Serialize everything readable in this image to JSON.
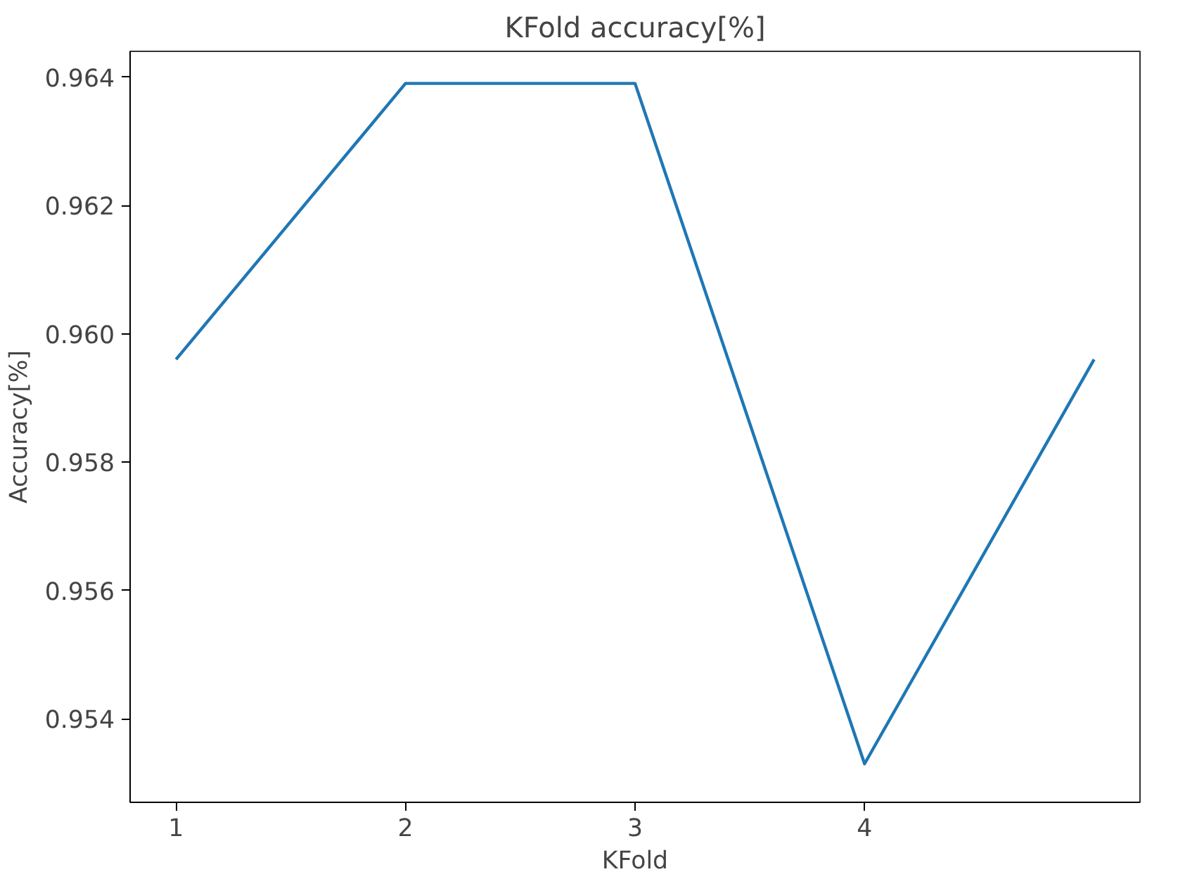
{
  "chart_data": {
    "type": "line",
    "title": "KFold accuracy[%]",
    "xlabel": "KFold",
    "ylabel": "Accuracy[%]",
    "x": [
      1,
      2,
      3,
      4,
      5
    ],
    "series": [
      {
        "color": "#1f77b4",
        "values": [
          0.9596,
          0.9639,
          0.9639,
          0.9533,
          0.9596
        ]
      }
    ],
    "xlim": [
      0.8,
      5.2
    ],
    "xticks": [
      1,
      2,
      3,
      4
    ],
    "ylim": [
      0.9527,
      0.9644
    ],
    "yticks": [
      0.954,
      0.956,
      0.958,
      {
        "value": 0.96,
        "label": "0.960"
      },
      0.962,
      0.964
    ],
    "grid": false,
    "line_style": "solid"
  }
}
